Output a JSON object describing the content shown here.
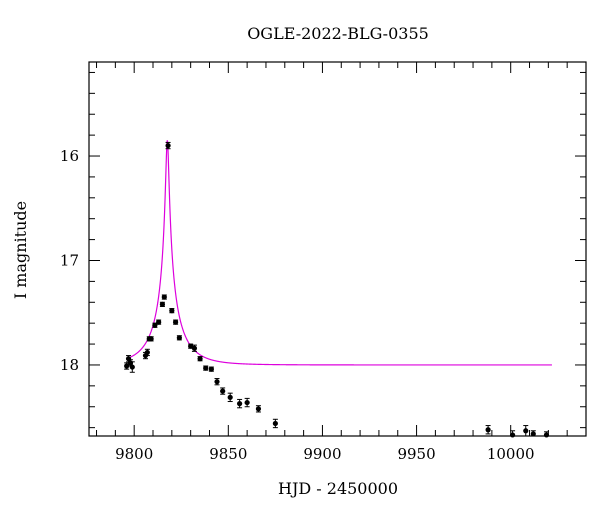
{
  "chart_data": {
    "type": "scatter",
    "title": "OGLE-2022-BLG-0355",
    "xlabel": "HJD - 2450000",
    "ylabel": "I magnitude",
    "xlim": [
      9776,
      10040
    ],
    "ylim": [
      18.68,
      15.1
    ],
    "y_inverted": true,
    "x_ticks": [
      9800,
      9850,
      9900,
      9950,
      10000
    ],
    "y_ticks": [
      16,
      17,
      18
    ],
    "x_tick_labels": [
      "9800",
      "9850",
      "9900",
      "9950",
      "10000"
    ],
    "y_tick_labels": [
      "16",
      "17",
      "18"
    ],
    "x_minor_step": 10,
    "y_minor_step": 0.2,
    "grid": false,
    "colors": {
      "points": "#000000",
      "model": "#dd00dd",
      "axes": "#000000"
    },
    "series": [
      {
        "kind": "points",
        "x": [
          9796,
          9797,
          9798,
          9799,
          9806,
          9807,
          9808,
          9809,
          9811,
          9813,
          9815,
          9816,
          9818,
          9820,
          9822,
          9824,
          9830,
          9832,
          9835,
          9838,
          9841,
          9844,
          9847,
          9851,
          9856,
          9860,
          9866,
          9875,
          9988,
          10001,
          10008,
          10012,
          10019
        ],
        "y": [
          18.01,
          17.94,
          17.98,
          18.02,
          17.91,
          17.88,
          17.75,
          17.75,
          17.62,
          17.59,
          17.42,
          17.35,
          15.9,
          17.48,
          17.59,
          17.74,
          17.82,
          17.84,
          17.94,
          18.03,
          18.04,
          18.16,
          18.25,
          18.31,
          18.37,
          18.36,
          18.42,
          18.56,
          18.62,
          18.67,
          18.63,
          18.66,
          18.67
        ],
        "yerr": [
          0.03,
          0.03,
          0.03,
          0.05,
          0.03,
          0.03,
          0.02,
          0.02,
          0.02,
          0.02,
          0.02,
          0.02,
          0.03,
          0.02,
          0.02,
          0.02,
          0.02,
          0.03,
          0.02,
          0.02,
          0.02,
          0.03,
          0.03,
          0.04,
          0.04,
          0.04,
          0.03,
          0.04,
          0.04,
          0.04,
          0.05,
          0.03,
          0.03
        ]
      },
      {
        "kind": "model",
        "baseline": 18.0,
        "peak_mag": 15.85,
        "t0": 9817.6,
        "tE": 16,
        "u0": 0.05,
        "x_range": [
          9796,
          10022
        ]
      }
    ]
  }
}
